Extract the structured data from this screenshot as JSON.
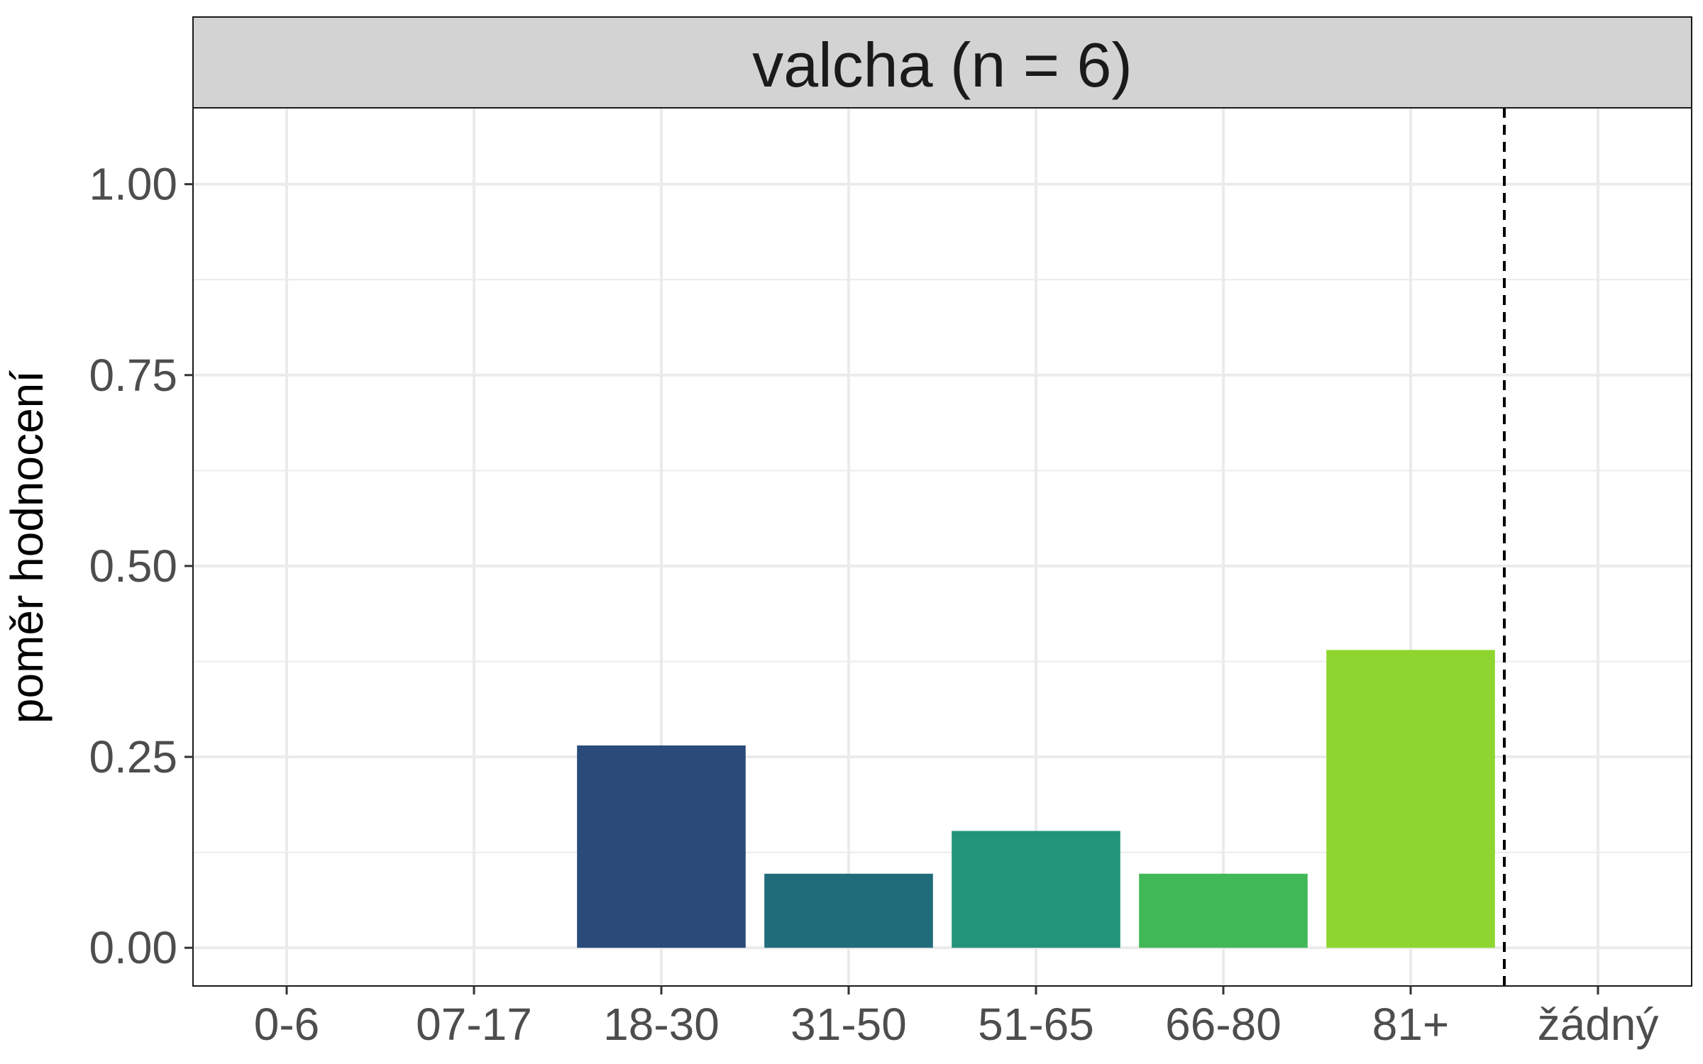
{
  "chart_data": {
    "type": "bar",
    "facet_title": "valcha (n = 6)",
    "xlabel": "",
    "ylabel": "poměr hodnocení",
    "categories": [
      "0-6",
      "07-17",
      "18-30",
      "31-50",
      "51-65",
      "66-80",
      "81+",
      "žádný"
    ],
    "values": [
      0,
      0,
      0.265,
      0.097,
      0.153,
      0.097,
      0.39,
      0
    ],
    "bar_colors": [
      "#3B528B",
      "#3B528B",
      "#2A4A7A",
      "#216C7A",
      "#21947A",
      "#41B858",
      "#8ED62F",
      "#8ED62F"
    ],
    "ylim": [
      -0.05,
      1.1
    ],
    "yticks": [
      0,
      0.25,
      0.5,
      0.75,
      1.0
    ],
    "ytick_labels": [
      "0.00",
      "0.25",
      "0.50",
      "0.75",
      "1.00"
    ],
    "grid": true,
    "reference_line": {
      "between": [
        "81+",
        "žádný"
      ],
      "style": "dashed"
    }
  }
}
